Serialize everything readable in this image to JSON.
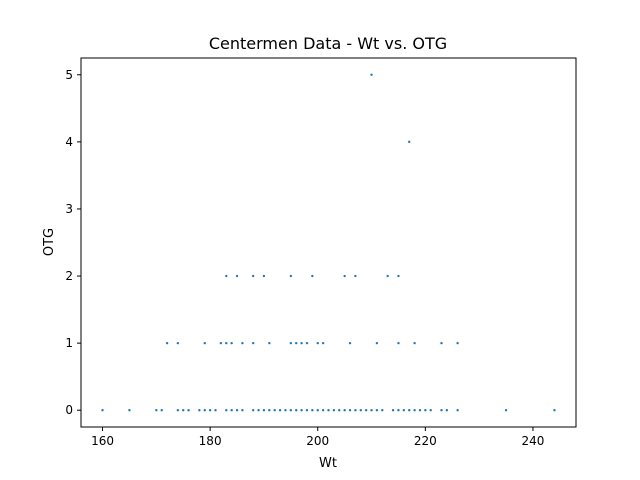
{
  "chart_data": {
    "type": "scatter",
    "title": "Centermen Data - Wt vs. OTG",
    "xlabel": "Wt",
    "ylabel": "OTG",
    "xlim": [
      156,
      248
    ],
    "ylim": [
      -0.25,
      5.25
    ],
    "xticks": [
      160,
      180,
      200,
      220,
      240
    ],
    "yticks": [
      0,
      1,
      2,
      3,
      4,
      5
    ],
    "grid": false,
    "marker_color": "#1f77b4",
    "points": [
      [
        160,
        0
      ],
      [
        165,
        0
      ],
      [
        170,
        0
      ],
      [
        171,
        0
      ],
      [
        174,
        0
      ],
      [
        175,
        0
      ],
      [
        176,
        0
      ],
      [
        178,
        0
      ],
      [
        179,
        0
      ],
      [
        180,
        0
      ],
      [
        181,
        0
      ],
      [
        183,
        0
      ],
      [
        184,
        0
      ],
      [
        185,
        0
      ],
      [
        186,
        0
      ],
      [
        188,
        0
      ],
      [
        189,
        0
      ],
      [
        190,
        0
      ],
      [
        191,
        0
      ],
      [
        192,
        0
      ],
      [
        193,
        0
      ],
      [
        194,
        0
      ],
      [
        195,
        0
      ],
      [
        196,
        0
      ],
      [
        197,
        0
      ],
      [
        198,
        0
      ],
      [
        199,
        0
      ],
      [
        200,
        0
      ],
      [
        201,
        0
      ],
      [
        202,
        0
      ],
      [
        203,
        0
      ],
      [
        204,
        0
      ],
      [
        205,
        0
      ],
      [
        206,
        0
      ],
      [
        207,
        0
      ],
      [
        208,
        0
      ],
      [
        209,
        0
      ],
      [
        210,
        0
      ],
      [
        211,
        0
      ],
      [
        212,
        0
      ],
      [
        214,
        0
      ],
      [
        215,
        0
      ],
      [
        216,
        0
      ],
      [
        217,
        0
      ],
      [
        218,
        0
      ],
      [
        219,
        0
      ],
      [
        220,
        0
      ],
      [
        221,
        0
      ],
      [
        223,
        0
      ],
      [
        224,
        0
      ],
      [
        226,
        0
      ],
      [
        235,
        0
      ],
      [
        244,
        0
      ],
      [
        172,
        1
      ],
      [
        174,
        1
      ],
      [
        179,
        1
      ],
      [
        182,
        1
      ],
      [
        183,
        1
      ],
      [
        184,
        1
      ],
      [
        186,
        1
      ],
      [
        188,
        1
      ],
      [
        191,
        1
      ],
      [
        195,
        1
      ],
      [
        196,
        1
      ],
      [
        197,
        1
      ],
      [
        198,
        1
      ],
      [
        200,
        1
      ],
      [
        201,
        1
      ],
      [
        206,
        1
      ],
      [
        211,
        1
      ],
      [
        215,
        1
      ],
      [
        218,
        1
      ],
      [
        223,
        1
      ],
      [
        226,
        1
      ],
      [
        183,
        2
      ],
      [
        185,
        2
      ],
      [
        188,
        2
      ],
      [
        190,
        2
      ],
      [
        195,
        2
      ],
      [
        199,
        2
      ],
      [
        205,
        2
      ],
      [
        207,
        2
      ],
      [
        213,
        2
      ],
      [
        215,
        2
      ],
      [
        217,
        4
      ],
      [
        210,
        5
      ]
    ]
  }
}
